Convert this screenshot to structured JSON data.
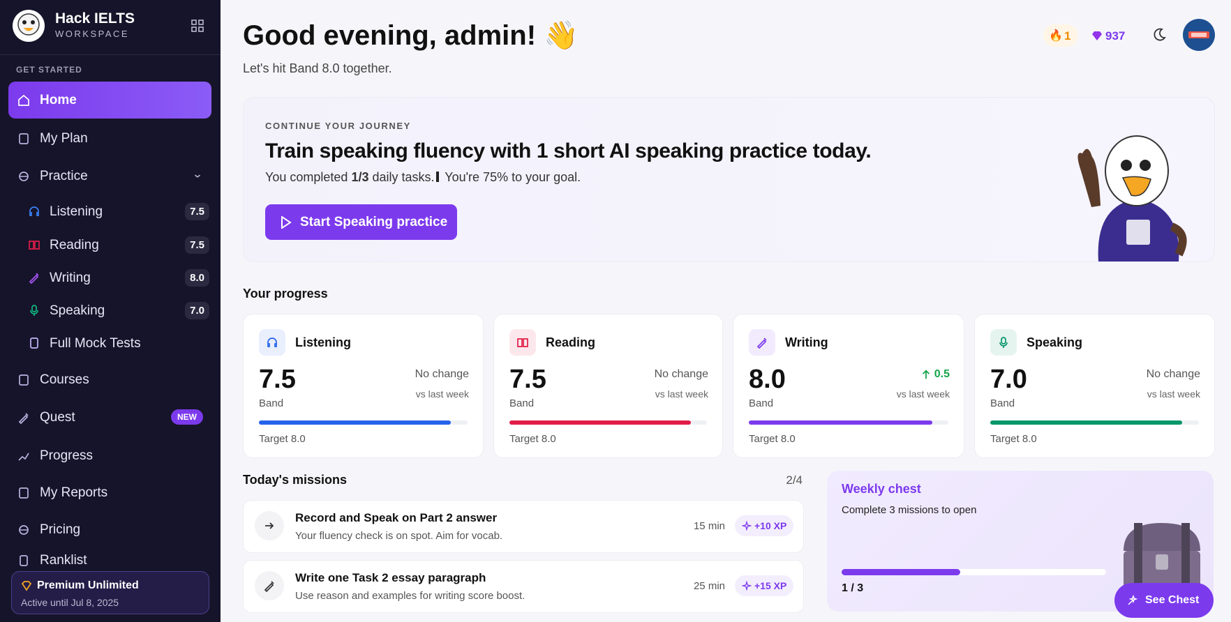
{
  "sidebar": {
    "brand": "Hack IELTS",
    "brand_sub": "WORKSPACE",
    "section": "GET STARTED",
    "nav": [
      {
        "label": "Home"
      },
      {
        "label": "My Plan"
      },
      {
        "label": "Practice",
        "children": [
          {
            "label": "Listening",
            "score": "7.5"
          },
          {
            "label": "Reading",
            "score": "7.5"
          },
          {
            "label": "Writing",
            "score": "8.0"
          },
          {
            "label": "Speaking",
            "score": "7.0"
          },
          {
            "label": "Full Mock Tests"
          }
        ]
      },
      {
        "label": "Courses"
      },
      {
        "label": "Quest",
        "badge": "NEW"
      },
      {
        "label": "Progress"
      },
      {
        "label": "My Reports"
      },
      {
        "label": "Pricing"
      },
      {
        "label": "Ranklist"
      }
    ],
    "premium": {
      "title": "Premium Unlimited",
      "subtitle": "Active until Jul 8, 2025"
    }
  },
  "header": {
    "greeting": "Good evening, admin! 👋",
    "subtitle": "Let's hit Band 8.0 together.",
    "streak": "1",
    "gems": "937"
  },
  "hero": {
    "eyebrow": "CONTINUE YOUR JOURNEY",
    "title": "Train speaking fluency with 1 short AI speaking practice today.",
    "text_before": "You completed",
    "text_bold": "1/3",
    "text_middle": "daily tasks.",
    "text_after": "You're 75% to your goal.",
    "button": "Start Speaking practice"
  },
  "progress": {
    "title": "Your progress",
    "cards": [
      {
        "skill": "Listening",
        "band": "7.5",
        "band_label": "Band",
        "change": "No change",
        "change_note": "vs last week",
        "target": "Target 8.0",
        "color": "#2563eb"
      },
      {
        "skill": "Reading",
        "band": "7.5",
        "band_label": "Band",
        "change": "No change",
        "change_note": "vs last week",
        "target": "Target 8.0",
        "color": "#e11d48"
      },
      {
        "skill": "Writing",
        "band": "8.0",
        "band_label": "Band",
        "change": "0.5",
        "change_note": "vs last week",
        "target": "Target 8.0",
        "color": "#7c3aed"
      },
      {
        "skill": "Speaking",
        "band": "7.0",
        "band_label": "Band",
        "change": "No change",
        "change_note": "vs last week",
        "target": "Target 8.0",
        "color": "#059669"
      }
    ]
  },
  "missions": {
    "title": "Today's missions",
    "count": "2/4",
    "items": [
      {
        "title": "Record and Speak on Part 2 answer",
        "description": "Your fluency check is on spot. Aim for vocab.",
        "time": "15 min",
        "xp": "+10 XP"
      },
      {
        "title": "Write one Task 2 essay paragraph",
        "description": "Use reason and examples for writing score boost.",
        "time": "25 min",
        "xp": "+15 XP"
      }
    ]
  },
  "chest": {
    "title": "Weekly chest",
    "text": "Complete 3 missions to open",
    "progress": "1 / 3",
    "button": "See Chest"
  }
}
